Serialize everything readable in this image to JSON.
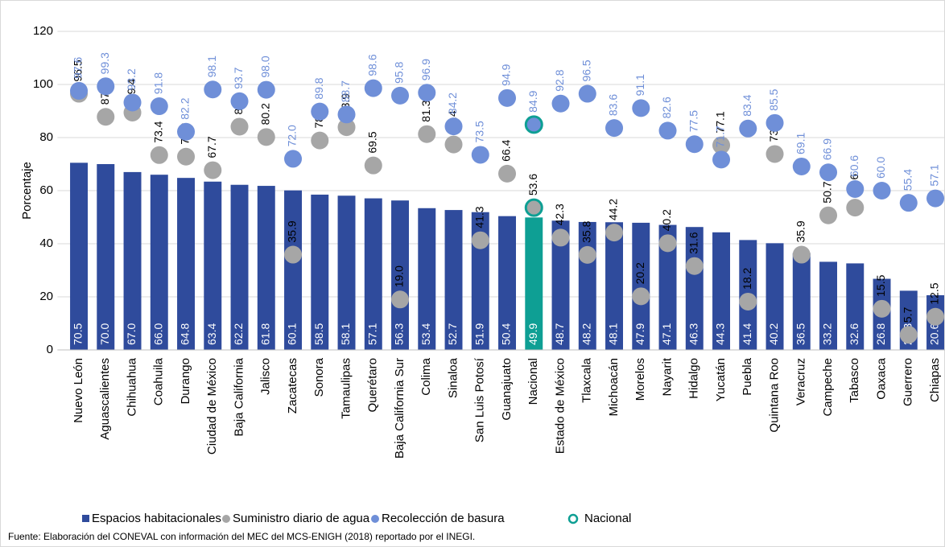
{
  "chart_data": {
    "type": "bar",
    "categories": [
      "Nuevo León",
      "Aguascalientes",
      "Chihuahua",
      "Coahuila",
      "Durango",
      "Ciudad de México",
      "Baja California",
      "Jalisco",
      "Zacatecas",
      "Sonora",
      "Tamaulipas",
      "Querétaro",
      "Baja California Sur",
      "Colima",
      "Sinaloa",
      "San Luis Potosí",
      "Guanajuato",
      "Nacional",
      "Estado de México",
      "Tlaxcala",
      "Michoacán",
      "Morelos",
      "Nayarit",
      "Hidalgo",
      "Yucatán",
      "Puebla",
      "Quintana Roo",
      "Veracruz",
      "Campeche",
      "Tabasco",
      "Oaxaca",
      "Guerrero",
      "Chiapas"
    ],
    "series": [
      {
        "name": "Espacios habitacionales",
        "kind": "bar",
        "color": "#2f4b9c",
        "values": [
          70.5,
          70.0,
          67.0,
          66.0,
          64.8,
          63.4,
          62.2,
          61.8,
          60.1,
          58.5,
          58.1,
          57.1,
          56.3,
          53.4,
          52.7,
          51.9,
          50.4,
          49.9,
          48.7,
          48.2,
          48.1,
          47.9,
          47.1,
          46.3,
          44.3,
          41.4,
          40.2,
          36.5,
          33.2,
          32.6,
          26.8,
          22.3,
          20.6
        ],
        "value_labels": [
          "70.5",
          "70.0",
          "67.0",
          "66.0",
          "64.8",
          "63.4",
          "62.2",
          "61.8",
          "60.1",
          "58.5",
          "58.1",
          "57.1",
          "56.3",
          "53.4",
          "52.7",
          "51.9",
          "50.4",
          "49.9",
          "48.7",
          "48.2",
          "48.1",
          "47.9",
          "47.1",
          "46.3",
          "44.3",
          "41.4",
          "40.2",
          "36.5",
          "33.2",
          "32.6",
          "26.8",
          "22.3",
          "20.6"
        ]
      },
      {
        "name": "Suministro diario de agua",
        "kind": "dot",
        "color": "#a6a6a6",
        "values": [
          96.5,
          87.8,
          89.4,
          73.4,
          72.8,
          67.7,
          84.1,
          80.2,
          35.9,
          78.9,
          83.9,
          69.5,
          19.0,
          81.3,
          77.4,
          41.3,
          66.4,
          53.6,
          42.3,
          35.8,
          44.2,
          20.2,
          40.2,
          31.6,
          77.1,
          18.2,
          73.8,
          35.9,
          50.7,
          53.6,
          15.5,
          5.7,
          12.5
        ],
        "value_labels": [
          "96.5",
          "87.8",
          "89.4",
          "73.4",
          "72.8",
          "67.7",
          "84.1",
          "80.2",
          "35.9",
          "78.9",
          "83.9",
          "69.5",
          "19.0",
          "81.3",
          "77.4",
          "41.3",
          "66.4",
          "53.6",
          "42.3",
          "35.8",
          "44.2",
          "20.2",
          "40.2",
          "31.6",
          "77.1",
          "18.2",
          "73.8",
          "35.9",
          "50.7",
          "53.6",
          "15.5",
          "5.7",
          "12.5"
        ]
      },
      {
        "name": "Recolección de basura",
        "kind": "dot",
        "color": "#6f8fd8",
        "values": [
          97.6,
          99.3,
          93.2,
          91.8,
          82.2,
          98.1,
          93.7,
          98.0,
          72.0,
          89.8,
          88.7,
          98.6,
          95.8,
          96.9,
          84.2,
          73.5,
          94.9,
          84.9,
          92.8,
          96.5,
          83.6,
          91.1,
          82.6,
          77.5,
          71.7,
          83.4,
          85.5,
          69.1,
          66.9,
          60.6,
          60.0,
          55.4,
          57.1
        ],
        "value_labels": [
          "97.6",
          "99.3",
          "93.2",
          "91.8",
          "82.2",
          "98.1",
          "93.7",
          "98.0",
          "72.0",
          "89.8",
          "88.7",
          "98.6",
          "95.8",
          "96.9",
          "84.2",
          "73.5",
          "94.9",
          "84.9",
          "92.8",
          "96.5",
          "83.6",
          "91.1",
          "82.6",
          "77.5",
          "71.7",
          "83.4",
          "85.5",
          "69.1",
          "66.9",
          "60.6",
          "60.0",
          "55.4",
          "57.1"
        ]
      }
    ],
    "highlight": "Nacional",
    "highlight_color": "#0e9f94",
    "ylabel": "Porcentaje",
    "ylim": [
      0,
      120
    ],
    "yticks": [
      0,
      20,
      40,
      60,
      80,
      100,
      120
    ],
    "grid": true,
    "source": "Fuente: Elaboración del CONEVAL con información del MEC del MCS-ENIGH (2018) reportado por el INEGI."
  }
}
